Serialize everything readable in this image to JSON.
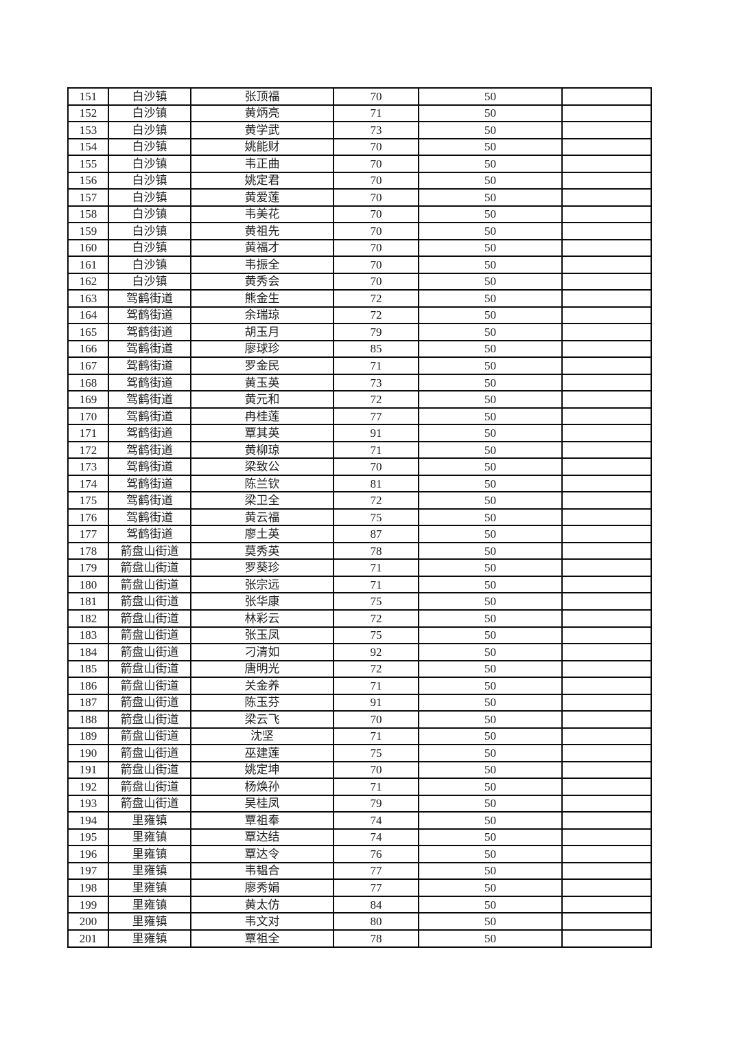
{
  "page": {
    "background": "#ffffff",
    "border_color": "#0a0a0a",
    "text_color": "#1d1d1d"
  },
  "table": {
    "columns": [
      "no",
      "town",
      "name",
      "age",
      "amount",
      "blank"
    ],
    "rows": [
      [
        151,
        "白沙镇",
        "张顶福",
        70,
        50,
        ""
      ],
      [
        152,
        "白沙镇",
        "黄炳亮",
        71,
        50,
        ""
      ],
      [
        153,
        "白沙镇",
        "黄学武",
        73,
        50,
        ""
      ],
      [
        154,
        "白沙镇",
        "姚能财",
        70,
        50,
        ""
      ],
      [
        155,
        "白沙镇",
        "韦正曲",
        70,
        50,
        ""
      ],
      [
        156,
        "白沙镇",
        "姚定君",
        70,
        50,
        ""
      ],
      [
        157,
        "白沙镇",
        "黄爱莲",
        70,
        50,
        ""
      ],
      [
        158,
        "白沙镇",
        "韦美花",
        70,
        50,
        ""
      ],
      [
        159,
        "白沙镇",
        "黄祖先",
        70,
        50,
        ""
      ],
      [
        160,
        "白沙镇",
        "黄福才",
        70,
        50,
        ""
      ],
      [
        161,
        "白沙镇",
        "韦振全",
        70,
        50,
        ""
      ],
      [
        162,
        "白沙镇",
        "黄秀会",
        70,
        50,
        ""
      ],
      [
        163,
        "驾鹤街道",
        "熊金生",
        72,
        50,
        ""
      ],
      [
        164,
        "驾鹤街道",
        "余瑞琼",
        72,
        50,
        ""
      ],
      [
        165,
        "驾鹤街道",
        "胡玉月",
        79,
        50,
        ""
      ],
      [
        166,
        "驾鹤街道",
        "廖球珍",
        85,
        50,
        ""
      ],
      [
        167,
        "驾鹤街道",
        "罗金民",
        71,
        50,
        ""
      ],
      [
        168,
        "驾鹤街道",
        "黄玉英",
        73,
        50,
        ""
      ],
      [
        169,
        "驾鹤街道",
        "黄元和",
        72,
        50,
        ""
      ],
      [
        170,
        "驾鹤街道",
        "冉桂莲",
        77,
        50,
        ""
      ],
      [
        171,
        "驾鹤街道",
        "覃其英",
        91,
        50,
        ""
      ],
      [
        172,
        "驾鹤街道",
        "黄柳琼",
        71,
        50,
        ""
      ],
      [
        173,
        "驾鹤街道",
        "梁致公",
        70,
        50,
        ""
      ],
      [
        174,
        "驾鹤街道",
        "陈兰钦",
        81,
        50,
        ""
      ],
      [
        175,
        "驾鹤街道",
        "梁卫全",
        72,
        50,
        ""
      ],
      [
        176,
        "驾鹤街道",
        "黄云福",
        75,
        50,
        ""
      ],
      [
        177,
        "驾鹤街道",
        "廖土英",
        87,
        50,
        ""
      ],
      [
        178,
        "箭盘山街道",
        "莫秀英",
        78,
        50,
        ""
      ],
      [
        179,
        "箭盘山街道",
        "罗葵珍",
        71,
        50,
        ""
      ],
      [
        180,
        "箭盘山街道",
        "张宗远",
        71,
        50,
        ""
      ],
      [
        181,
        "箭盘山街道",
        "张华康",
        75,
        50,
        ""
      ],
      [
        182,
        "箭盘山街道",
        "林彩云",
        72,
        50,
        ""
      ],
      [
        183,
        "箭盘山街道",
        "张玉凤",
        75,
        50,
        ""
      ],
      [
        184,
        "箭盘山街道",
        "刁清如",
        92,
        50,
        ""
      ],
      [
        185,
        "箭盘山街道",
        "唐明光",
        72,
        50,
        ""
      ],
      [
        186,
        "箭盘山街道",
        "关金养",
        71,
        50,
        ""
      ],
      [
        187,
        "箭盘山街道",
        "陈玉芬",
        91,
        50,
        ""
      ],
      [
        188,
        "箭盘山街道",
        "梁云飞",
        70,
        50,
        ""
      ],
      [
        189,
        "箭盘山街道",
        "沈坚",
        71,
        50,
        ""
      ],
      [
        190,
        "箭盘山街道",
        "巫建莲",
        75,
        50,
        ""
      ],
      [
        191,
        "箭盘山街道",
        "姚定坤",
        70,
        50,
        ""
      ],
      [
        192,
        "箭盘山街道",
        "杨焕孙",
        71,
        50,
        ""
      ],
      [
        193,
        "箭盘山街道",
        "吴桂凤",
        79,
        50,
        ""
      ],
      [
        194,
        "里雍镇",
        "覃祖奉",
        74,
        50,
        ""
      ],
      [
        195,
        "里雍镇",
        "覃达结",
        74,
        50,
        ""
      ],
      [
        196,
        "里雍镇",
        "覃达令",
        76,
        50,
        ""
      ],
      [
        197,
        "里雍镇",
        "韦韫合",
        77,
        50,
        ""
      ],
      [
        198,
        "里雍镇",
        "廖秀娟",
        77,
        50,
        ""
      ],
      [
        199,
        "里雍镇",
        "黄太仿",
        84,
        50,
        ""
      ],
      [
        200,
        "里雍镇",
        "韦文对",
        80,
        50,
        ""
      ],
      [
        201,
        "里雍镇",
        "覃祖全",
        78,
        50,
        ""
      ]
    ]
  }
}
